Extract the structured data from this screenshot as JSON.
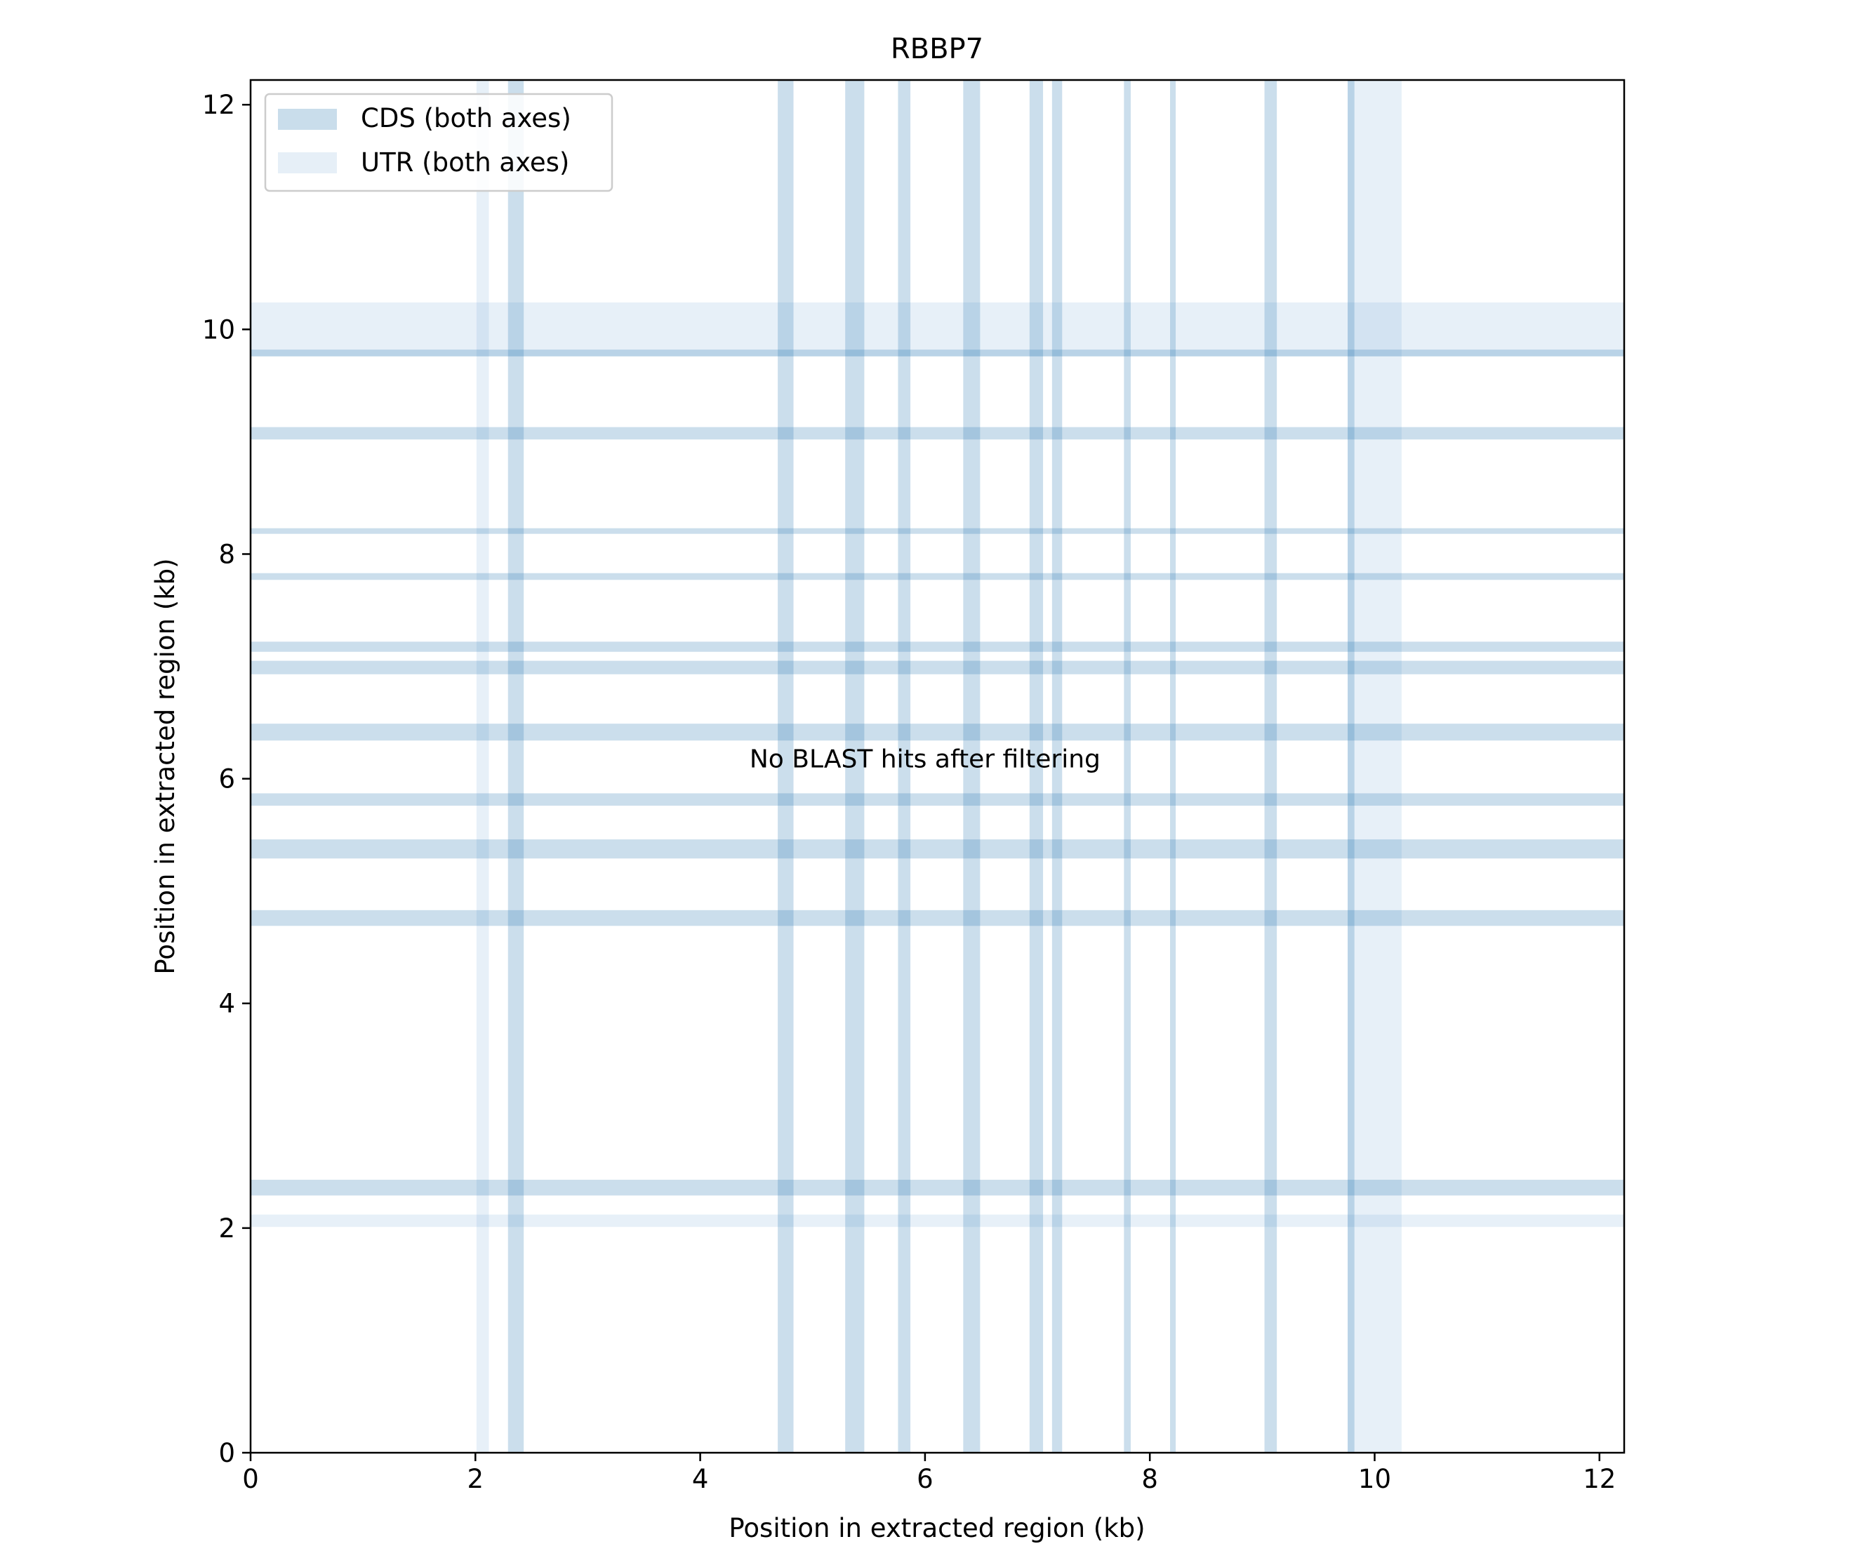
{
  "chart_data": {
    "type": "heatmap",
    "title": "RBBP7",
    "xlabel": "Position in extracted region (kb)",
    "ylabel": "Position in extracted region (kb)",
    "xlim": [
      0,
      12.22
    ],
    "ylim": [
      0,
      12.22
    ],
    "xticks": [
      0,
      2,
      4,
      6,
      8,
      10,
      12
    ],
    "yticks": [
      0,
      2,
      4,
      6,
      8,
      10,
      12
    ],
    "grid": false,
    "legend": {
      "placement": "top-left",
      "entries": [
        {
          "label": "CDS (both axes)",
          "color": "#c9ddeb"
        },
        {
          "label": "UTR (both axes)",
          "color": "#e6eff7"
        }
      ]
    },
    "annotation": "No BLAST hits after filtering",
    "annotation_pos": {
      "x": 6.0,
      "y": 6.1
    },
    "cds_color": "#2f7ab5",
    "cds_alpha": 0.25,
    "utr_color": "#7aaad6",
    "utr_alpha": 0.18,
    "cds_regions_kb": [
      [
        2.29,
        2.43
      ],
      [
        4.69,
        4.83
      ],
      [
        5.29,
        5.46
      ],
      [
        5.76,
        5.87
      ],
      [
        6.34,
        6.49
      ],
      [
        6.93,
        7.05
      ],
      [
        7.13,
        7.22
      ],
      [
        7.77,
        7.83
      ],
      [
        8.18,
        8.23
      ],
      [
        9.02,
        9.13
      ],
      [
        9.76,
        9.82
      ]
    ],
    "utr_regions_kb": [
      [
        2.01,
        2.12
      ],
      [
        9.76,
        10.24
      ]
    ]
  }
}
